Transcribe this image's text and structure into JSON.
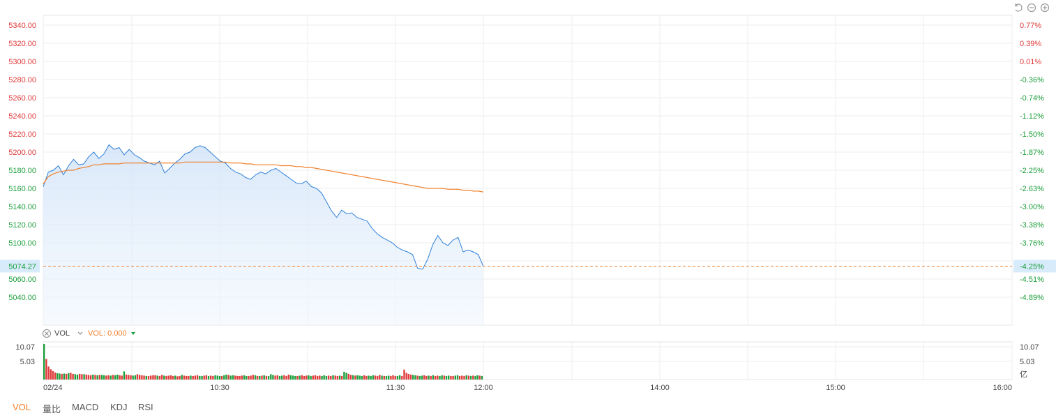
{
  "chart_data": {
    "type": "line",
    "x_ticks": [
      "02/24",
      "10:30",
      "11:30",
      "12:00",
      "14:00",
      "15:00",
      "16:00"
    ],
    "y_left_ticks": [
      "5340.00",
      "5320.00",
      "5300.00",
      "5280.00",
      "5260.00",
      "5240.00",
      "5220.00",
      "5200.00",
      "5180.00",
      "5160.00",
      "5140.00",
      "5120.00",
      "5100.00",
      "5060.00",
      "5040.00"
    ],
    "y_right_ticks": [
      {
        "label": "0.77%",
        "color": "#e03a3a"
      },
      {
        "label": "0.39%",
        "color": "#e03a3a"
      },
      {
        "label": "0.01%",
        "color": "#e03a3a"
      },
      {
        "label": "-0.36%",
        "color": "#1e9e3c"
      },
      {
        "label": "-0.74%",
        "color": "#1e9e3c"
      },
      {
        "label": "-1.12%",
        "color": "#1e9e3c"
      },
      {
        "label": "-1.50%",
        "color": "#1e9e3c"
      },
      {
        "label": "-1.87%",
        "color": "#1e9e3c"
      },
      {
        "label": "-2.25%",
        "color": "#1e9e3c"
      },
      {
        "label": "-2.63%",
        "color": "#1e9e3c"
      },
      {
        "label": "-3.00%",
        "color": "#1e9e3c"
      },
      {
        "label": "-3.38%",
        "color": "#1e9e3c"
      },
      {
        "label": "-3.76%",
        "color": "#1e9e3c"
      },
      {
        "label": "-4.51%",
        "color": "#1e9e3c"
      },
      {
        "label": "-4.89%",
        "color": "#1e9e3c"
      }
    ],
    "ylim": [
      5020,
      5350
    ],
    "current_price": "5074.27",
    "current_pct": "-4.25%",
    "series": [
      {
        "values": [
          5162,
          5178,
          5180,
          5185,
          5175,
          5185,
          5192,
          5186,
          5187,
          5195,
          5200,
          5193,
          5198,
          5208,
          5203,
          5205,
          5197,
          5203,
          5197,
          5194,
          5190,
          5188,
          5186,
          5190,
          5177,
          5182,
          5188,
          5192,
          5198,
          5200,
          5205,
          5207,
          5205,
          5200,
          5195,
          5190,
          5188,
          5182,
          5178,
          5176,
          5172,
          5170,
          5175,
          5178,
          5176,
          5180,
          5182,
          5178,
          5174,
          5170,
          5166,
          5165,
          5168,
          5162,
          5160,
          5155,
          5145,
          5135,
          5128,
          5136,
          5132,
          5133,
          5128,
          5126,
          5124,
          5116,
          5110,
          5106,
          5103,
          5100,
          5095,
          5092,
          5090,
          5087,
          5072,
          5071,
          5082,
          5098,
          5108,
          5100,
          5097,
          5103,
          5106,
          5090,
          5092,
          5090,
          5087,
          5074
        ]
      },
      {
        "values": [
          5165,
          5173,
          5176,
          5178,
          5179,
          5180,
          5180,
          5182,
          5183,
          5184,
          5186,
          5186,
          5187,
          5187,
          5187,
          5187,
          5188,
          5188,
          5188,
          5188,
          5188,
          5188,
          5188,
          5188,
          5188,
          5188,
          5188,
          5188,
          5189,
          5189,
          5189,
          5189,
          5189,
          5189,
          5189,
          5189,
          5189,
          5188,
          5188,
          5188,
          5187,
          5187,
          5186,
          5186,
          5186,
          5186,
          5186,
          5185,
          5185,
          5185,
          5184,
          5184,
          5183,
          5183,
          5182,
          5181,
          5180,
          5179,
          5178,
          5177,
          5176,
          5175,
          5174,
          5173,
          5172,
          5171,
          5170,
          5169,
          5168,
          5167,
          5166,
          5165,
          5164,
          5163,
          5162,
          5161,
          5160,
          5160,
          5160,
          5160,
          5159,
          5159,
          5159,
          5158,
          5158,
          5157,
          5157,
          5156
        ]
      }
    ],
    "volume": {
      "label": "VOL",
      "value_label": "VOL: 0.000",
      "y_ticks": [
        "10.07",
        "5.03"
      ],
      "unit": "亿",
      "ylim": [
        0,
        10.07
      ],
      "values": [
        10.07,
        5.8,
        3.7,
        2.9,
        2.4,
        2.0,
        1.8,
        1.7,
        1.6,
        1.7,
        1.6,
        1.8,
        1.9,
        1.6,
        1.5,
        1.4,
        1.6,
        1.5,
        1.5,
        1.4,
        1.3,
        1.2,
        1.4,
        1.3,
        1.2,
        1.3,
        1.3,
        1.2,
        1.1,
        1.2,
        1.1,
        1.3,
        1.2,
        1.4,
        1.2,
        1.1,
        2.3,
        1.4,
        1.3,
        1.2,
        1.1,
        1.2,
        1.5,
        1.3,
        1.2,
        1.1,
        1.0,
        1.0,
        1.1,
        1.2,
        1.2,
        1.1,
        1.0,
        1.3,
        1.1,
        1.0,
        1.1,
        1.2,
        1.0,
        1.1,
        0.9,
        1.0,
        1.3,
        1.1,
        1.0,
        1.0,
        1.1,
        1.0,
        1.1,
        1.2,
        1.0,
        1.0,
        1.1,
        1.2,
        1.0,
        1.1,
        1.0,
        1.2,
        1.1,
        1.0,
        1.0,
        1.2,
        1.4,
        1.3,
        1.1,
        1.2,
        1.1,
        1.0,
        1.0,
        1.1,
        1.2,
        1.0,
        1.0,
        1.1,
        1.3,
        1.2,
        1.0,
        1.0,
        1.1,
        1.2,
        1.0,
        1.0,
        1.5,
        1.3,
        1.1,
        1.2,
        1.0,
        1.1,
        1.2,
        1.0,
        1.4,
        1.2,
        1.1,
        1.0,
        1.0,
        1.1,
        1.2,
        1.0,
        1.1,
        1.2,
        1.0,
        1.1,
        1.2,
        1.0,
        1.1,
        1.0,
        1.2,
        1.0,
        1.1,
        1.0,
        1.2,
        1.1,
        1.0,
        1.1,
        1.0,
        2.2,
        1.9,
        1.6,
        1.3,
        1.2,
        1.1,
        1.2,
        1.1,
        1.0,
        1.2,
        1.0,
        1.1,
        1.0,
        1.2,
        1.1,
        1.0,
        1.3,
        1.1,
        1.0,
        1.0,
        1.1,
        1.0,
        1.2,
        1.0,
        1.0,
        1.2,
        1.0,
        2.8,
        1.9,
        1.6,
        1.4,
        1.3,
        1.2,
        1.1,
        1.0,
        1.1,
        1.2,
        1.0,
        1.1,
        1.0,
        1.2,
        1.0,
        1.1,
        1.0,
        1.2,
        1.1,
        1.0,
        1.1,
        1.0,
        1.0,
        1.1,
        1.2,
        1.0,
        1.1,
        1.0,
        1.2,
        1.1,
        1.0,
        1.1,
        1.0,
        1.2,
        1.1,
        1.0
      ],
      "colors": [
        "g",
        "r",
        "r",
        "r",
        "r",
        "r",
        "g",
        "g",
        "r",
        "g",
        "r",
        "g",
        "r",
        "r",
        "g",
        "g",
        "r",
        "r",
        "g",
        "r",
        "r",
        "r",
        "g",
        "r",
        "g",
        "r",
        "g",
        "g",
        "r",
        "r",
        "g",
        "r",
        "g",
        "g",
        "r",
        "r",
        "g",
        "r",
        "r",
        "r",
        "g",
        "g",
        "r",
        "r",
        "r",
        "r",
        "g",
        "r",
        "r",
        "r",
        "r",
        "g",
        "r",
        "r",
        "g",
        "r",
        "r",
        "r",
        "r",
        "g",
        "r",
        "r",
        "g",
        "r",
        "r",
        "r",
        "g",
        "r",
        "r",
        "r",
        "g",
        "g",
        "r",
        "r",
        "g",
        "r",
        "r",
        "g",
        "g",
        "g",
        "r",
        "g",
        "g",
        "r",
        "g",
        "g",
        "r",
        "r",
        "r",
        "r",
        "g",
        "g",
        "r",
        "r",
        "r",
        "g",
        "r",
        "g",
        "r",
        "g",
        "r",
        "g",
        "g",
        "g",
        "r",
        "r",
        "g",
        "g",
        "r",
        "r",
        "r",
        "g",
        "g",
        "g",
        "r",
        "g",
        "r",
        "r",
        "r",
        "g",
        "g",
        "r",
        "r",
        "r",
        "r",
        "g",
        "g",
        "g",
        "r",
        "r",
        "g",
        "r",
        "r",
        "g",
        "r",
        "g",
        "g",
        "r",
        "r",
        "g",
        "r",
        "g",
        "g",
        "g",
        "r",
        "r",
        "g",
        "g",
        "g",
        "r",
        "r",
        "r",
        "g",
        "r",
        "g",
        "g",
        "r",
        "r",
        "r",
        "g",
        "g",
        "r",
        "r",
        "r",
        "r",
        "r",
        "g",
        "g",
        "r",
        "g",
        "g",
        "r",
        "r",
        "g",
        "r",
        "g",
        "r",
        "r",
        "g",
        "g",
        "r",
        "g",
        "g",
        "r",
        "r",
        "g",
        "g",
        "r",
        "r",
        "r",
        "g",
        "r",
        "g",
        "r",
        "g",
        "g",
        "r",
        "g",
        "g",
        "r",
        "g"
      ]
    }
  },
  "tabs": [
    {
      "label": "VOL",
      "active": true
    },
    {
      "label": "量比",
      "active": false
    },
    {
      "label": "MACD",
      "active": false
    },
    {
      "label": "KDJ",
      "active": false
    },
    {
      "label": "RSI",
      "active": false
    }
  ],
  "colors": {
    "up": "#e03a3a",
    "down": "#1e9e3c",
    "price_line": "#2f80d8",
    "avg_line": "#f0802c",
    "grid": "#eeeeee",
    "accent": "#f0802c"
  }
}
